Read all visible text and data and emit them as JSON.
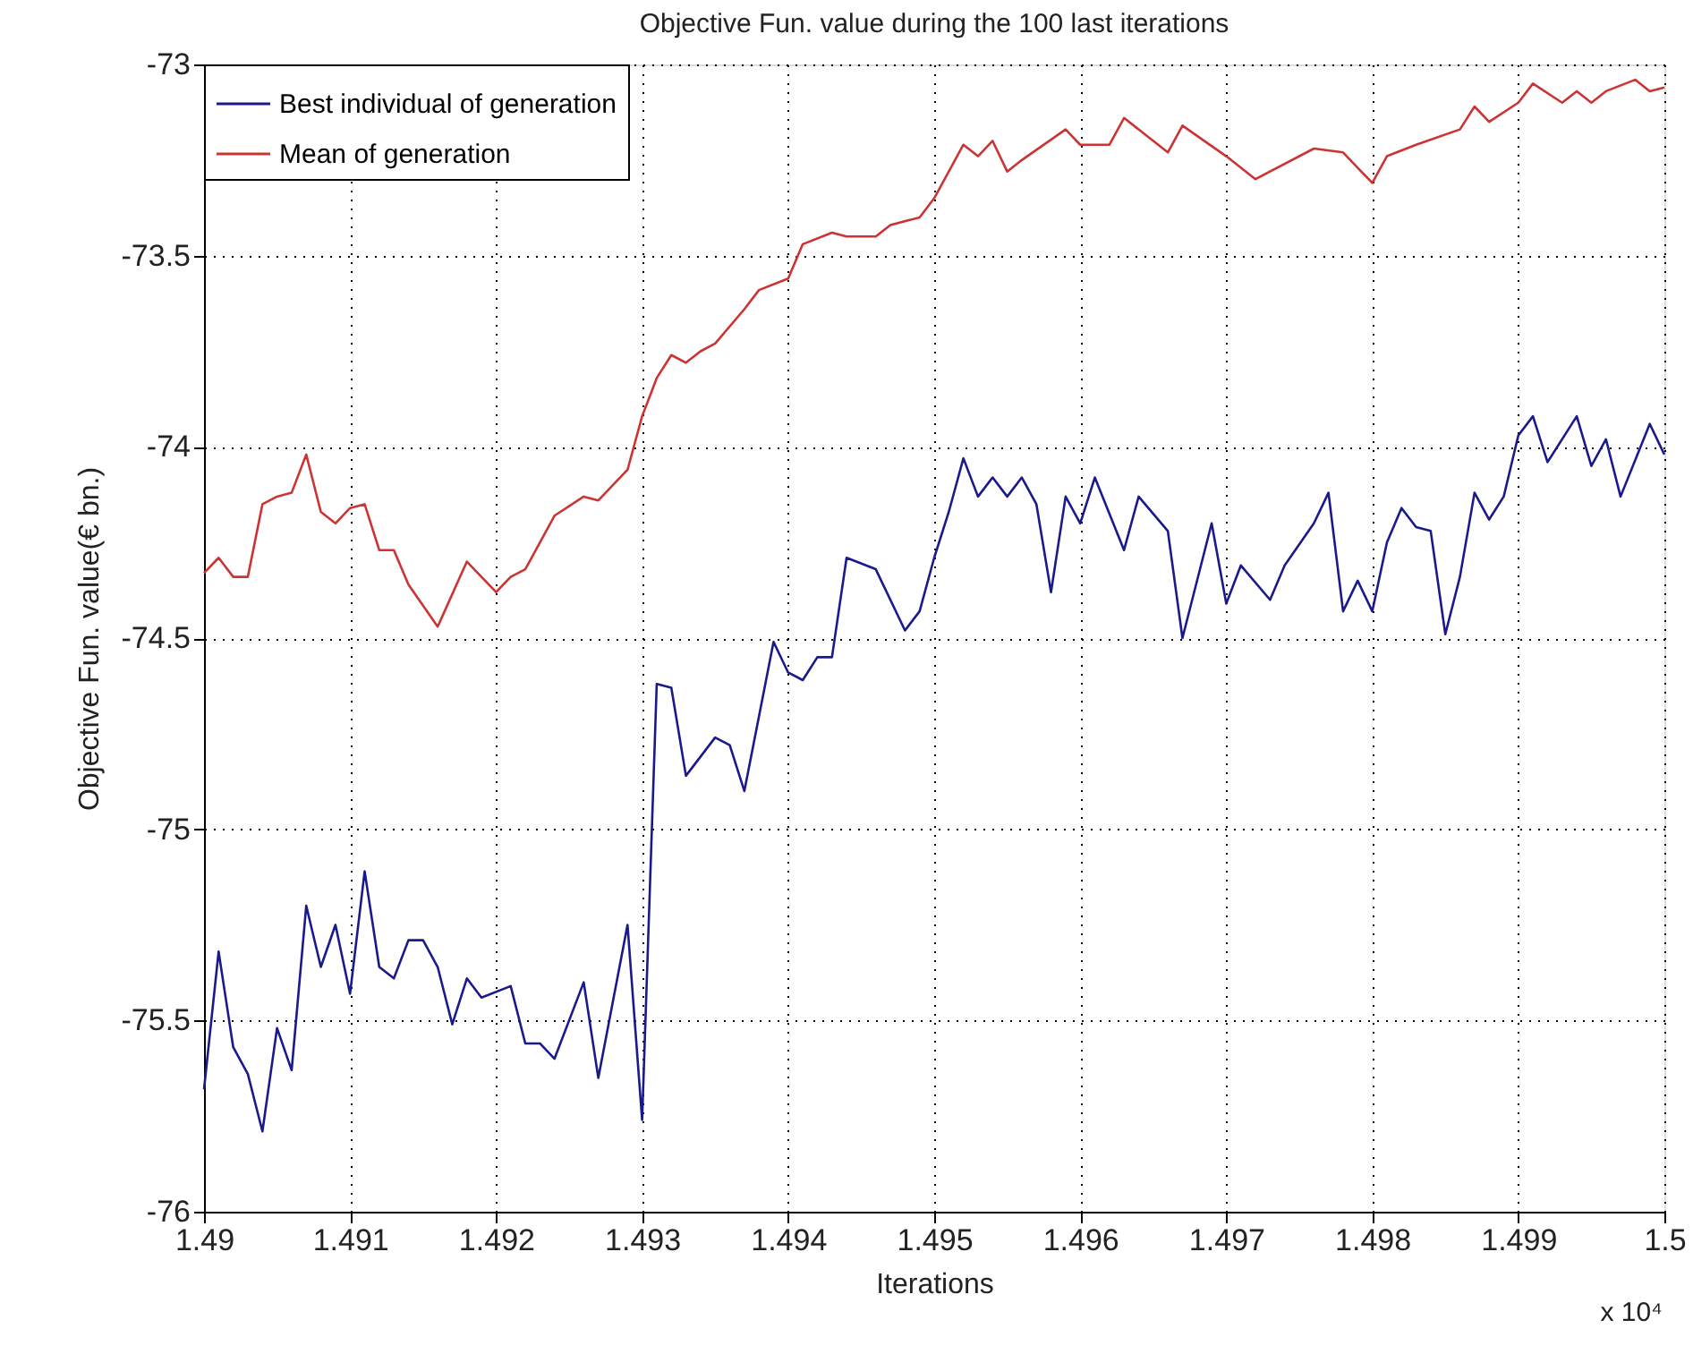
{
  "chart_data": {
    "type": "line",
    "title": "Objective Fun. value during the 100 last iterations",
    "xlabel": "Iterations",
    "ylabel": "Objective Fun. value(€ bn.)",
    "annotations": [
      "x 10⁴"
    ],
    "xlim": [
      1.49,
      1.5
    ],
    "xticks": [
      1.49,
      1.491,
      1.492,
      1.493,
      1.494,
      1.495,
      1.496,
      1.497,
      1.498,
      1.499,
      1.5
    ],
    "ylim": [
      -76,
      -73
    ],
    "yticks": [
      -76,
      -75.5,
      -75,
      -74.5,
      -74,
      -73.5,
      -73
    ],
    "grid": true,
    "legend": "top left",
    "line_style": "solid",
    "marker": "none",
    "series": [
      {
        "name": "Best individual of generation",
        "color": "#1a1a8c",
        "x": [
          1.49,
          1.4901,
          1.4902,
          1.4903,
          1.4904,
          1.4905,
          1.4906,
          1.4907,
          1.4908,
          1.4909,
          1.491,
          1.4911,
          1.4912,
          1.4913,
          1.4914,
          1.4915,
          1.4916,
          1.4917,
          1.4918,
          1.4919,
          1.4921,
          1.4922,
          1.4923,
          1.4924,
          1.4926,
          1.4927,
          1.4928,
          1.4929,
          1.493,
          1.4931,
          1.4932,
          1.4933,
          1.4935,
          1.4936,
          1.4937,
          1.4939,
          1.494,
          1.4941,
          1.4942,
          1.4943,
          1.4944,
          1.4946,
          1.4948,
          1.4949,
          1.495,
          1.4951,
          1.4952,
          1.4953,
          1.4954,
          1.4955,
          1.4956,
          1.4957,
          1.4958,
          1.4959,
          1.496,
          1.4961,
          1.4963,
          1.4964,
          1.4966,
          1.4967,
          1.4969,
          1.497,
          1.4971,
          1.4973,
          1.4974,
          1.4976,
          1.4977,
          1.4978,
          1.4979,
          1.498,
          1.4981,
          1.4982,
          1.4983,
          1.4984,
          1.4985,
          1.4986,
          1.4987,
          1.4988,
          1.4989,
          1.499,
          1.4991,
          1.4992,
          1.4994,
          1.4995,
          1.4996,
          1.4997,
          1.4999,
          1.5
        ],
        "values": [
          -75.68,
          -75.32,
          -75.57,
          -75.64,
          -75.79,
          -75.52,
          -75.63,
          -75.2,
          -75.36,
          -75.25,
          -75.43,
          -75.11,
          -75.36,
          -75.39,
          -75.29,
          -75.29,
          -75.36,
          -75.51,
          -75.39,
          -75.44,
          -75.41,
          -75.56,
          -75.56,
          -75.6,
          -75.4,
          -75.65,
          -75.45,
          -75.25,
          -75.76,
          -74.62,
          -74.63,
          -74.86,
          -74.76,
          -74.78,
          -74.9,
          -74.51,
          -74.59,
          -74.61,
          -74.55,
          -74.55,
          -74.29,
          -74.32,
          -74.48,
          -74.43,
          -74.29,
          -74.17,
          -74.03,
          -74.13,
          -74.08,
          -74.13,
          -74.08,
          -74.15,
          -74.38,
          -74.13,
          -74.2,
          -74.08,
          -74.27,
          -74.13,
          -74.22,
          -74.5,
          -74.2,
          -74.41,
          -74.31,
          -74.4,
          -74.31,
          -74.2,
          -74.12,
          -74.43,
          -74.35,
          -74.43,
          -74.25,
          -74.16,
          -74.21,
          -74.22,
          -74.49,
          -74.34,
          -74.12,
          -74.19,
          -74.13,
          -73.97,
          -73.92,
          -74.04,
          -73.92,
          -74.05,
          -73.98,
          -74.13,
          -73.94,
          -74.02
        ]
      },
      {
        "name": "Mean of generation",
        "color": "#cc3333",
        "x": [
          1.49,
          1.4901,
          1.4902,
          1.4903,
          1.4904,
          1.4905,
          1.4906,
          1.4907,
          1.4908,
          1.4909,
          1.491,
          1.4911,
          1.4912,
          1.4913,
          1.4914,
          1.4916,
          1.4918,
          1.492,
          1.4921,
          1.4922,
          1.4924,
          1.4926,
          1.4927,
          1.4929,
          1.493,
          1.4931,
          1.4932,
          1.4933,
          1.4934,
          1.4935,
          1.4937,
          1.4938,
          1.494,
          1.4941,
          1.4943,
          1.4944,
          1.4946,
          1.4947,
          1.4949,
          1.495,
          1.4952,
          1.4953,
          1.4954,
          1.4955,
          1.4956,
          1.4959,
          1.496,
          1.4962,
          1.4963,
          1.4966,
          1.4967,
          1.497,
          1.4972,
          1.4976,
          1.4978,
          1.498,
          1.4981,
          1.4983,
          1.4986,
          1.4987,
          1.4988,
          1.499,
          1.4991,
          1.4993,
          1.4994,
          1.4995,
          1.4996,
          1.4998,
          1.4999,
          1.5
        ],
        "values": [
          -74.33,
          -74.29,
          -74.34,
          -74.34,
          -74.15,
          -74.13,
          -74.12,
          -74.02,
          -74.17,
          -74.2,
          -74.16,
          -74.15,
          -74.27,
          -74.27,
          -74.36,
          -74.47,
          -74.3,
          -74.38,
          -74.34,
          -74.32,
          -74.18,
          -74.13,
          -74.14,
          -74.06,
          -73.92,
          -73.82,
          -73.76,
          -73.78,
          -73.75,
          -73.73,
          -73.64,
          -73.59,
          -73.56,
          -73.47,
          -73.44,
          -73.45,
          -73.45,
          -73.42,
          -73.4,
          -73.35,
          -73.21,
          -73.24,
          -73.2,
          -73.28,
          -73.25,
          -73.17,
          -73.21,
          -73.21,
          -73.14,
          -73.23,
          -73.16,
          -73.24,
          -73.3,
          -73.22,
          -73.23,
          -73.31,
          -73.24,
          -73.21,
          -73.17,
          -73.11,
          -73.15,
          -73.1,
          -73.05,
          -73.1,
          -73.07,
          -73.1,
          -73.07,
          -73.04,
          -73.07,
          -73.06
        ]
      }
    ]
  }
}
